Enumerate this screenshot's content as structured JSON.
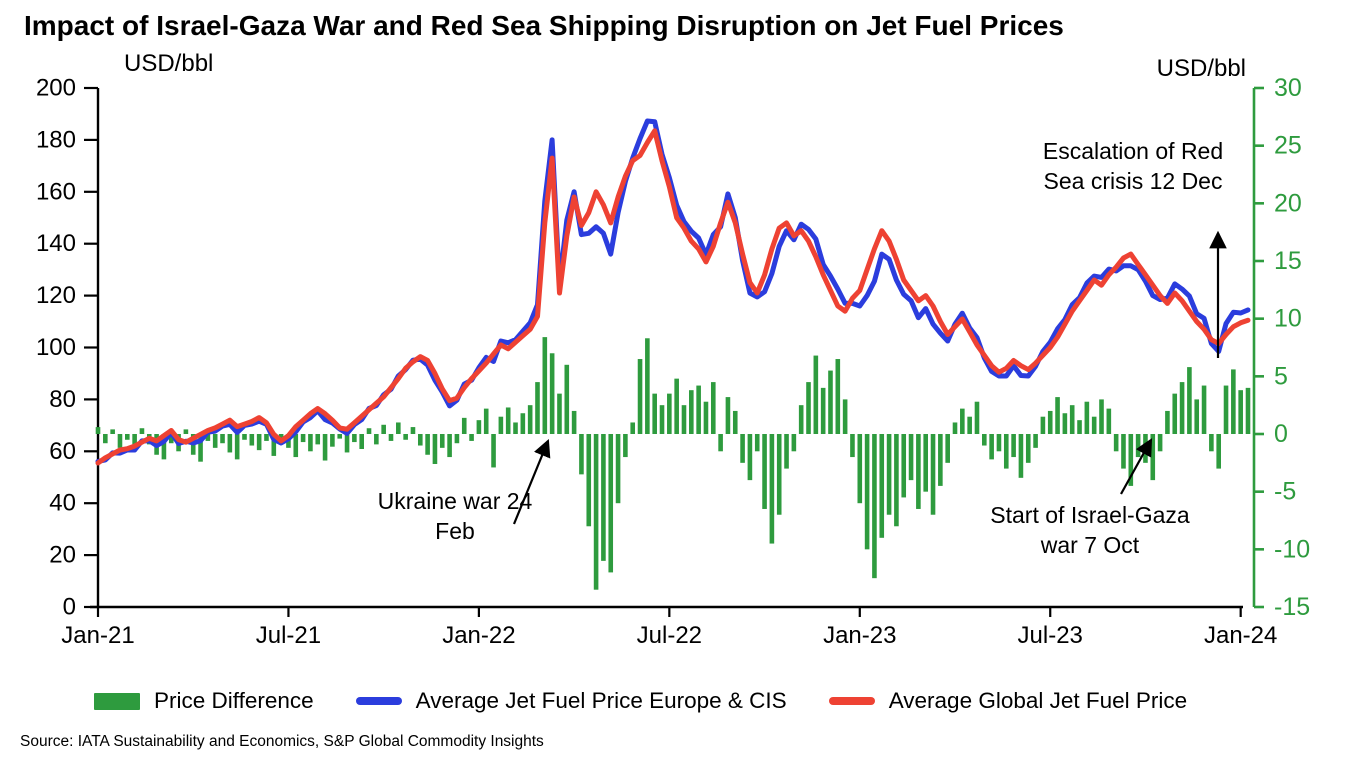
{
  "title": "Impact of Israel-Gaza War and Red Sea Shipping Disruption on Jet Fuel Prices",
  "source": "Source: IATA Sustainability and Economics, S&P Global Commodity Insights",
  "colors": {
    "green": "#2e9b3e",
    "blue": "#2b3ddd",
    "red": "#ee4233",
    "black": "#000000"
  },
  "annotations": {
    "ukraine": {
      "text": "Ukraine war 24 Feb",
      "line1": "Ukraine war 24",
      "line2": "Feb"
    },
    "israel": {
      "text": "Start of Israel-Gaza war 7 Oct",
      "line1": "Start of Israel-Gaza",
      "line2": "war 7 Oct"
    },
    "redsea": {
      "text": "Escalation of Red Sea crisis 12 Dec",
      "line1": "Escalation of Red",
      "line2": "Sea crisis 12 Dec"
    }
  },
  "legend": [
    {
      "label": "Price Difference",
      "type": "bar",
      "color": "#2e9b3e"
    },
    {
      "label": "Average Jet Fuel Price Europe & CIS",
      "type": "line",
      "color": "#2b3ddd"
    },
    {
      "label": "Average Global Jet Fuel Price",
      "type": "line",
      "color": "#ee4233"
    }
  ],
  "chart_data": {
    "type": "combo",
    "title": "Impact of Israel-Gaza War and Red Sea Shipping Disruption on Jet Fuel Prices",
    "x_start": "2021-01",
    "x_interval": "weekly",
    "x_tick_labels": [
      "Jan-21",
      "Jul-21",
      "Jan-22",
      "Jul-22",
      "Jan-23",
      "Jul-23",
      "Jan-24"
    ],
    "x_tick_indices": [
      0,
      26,
      52,
      78,
      104,
      130,
      156
    ],
    "left_axis": {
      "label": "USD/bbl",
      "min": 0,
      "max": 200,
      "ticks": [
        200,
        180,
        160,
        140,
        120,
        100,
        80,
        60,
        40,
        20,
        0
      ]
    },
    "right_axis": {
      "label": "USD/bbl",
      "min": -15,
      "max": 30,
      "ticks": [
        30,
        25,
        20,
        15,
        10,
        5,
        0,
        -5,
        -10,
        -15
      ]
    },
    "grid": false,
    "legend_position": "bottom",
    "series": [
      {
        "name": "Price Difference",
        "type": "bar",
        "axis": "right",
        "color": "#2e9b3e",
        "values": [
          0.6,
          -0.8,
          0.4,
          -1.2,
          -0.5,
          -1.5,
          0.5,
          -0.9,
          -1.8,
          -2.2,
          -0.8,
          -1.5,
          0.4,
          -1.8,
          -2.4,
          -0.6,
          -1.2,
          -0.8,
          -1.6,
          -2.2,
          -0.5,
          -1,
          -1.4,
          -0.6,
          -1.9,
          -0.8,
          -1.2,
          -2,
          -0.7,
          -1.5,
          -0.9,
          -2.3,
          -1.1,
          -0.4,
          -1.6,
          -0.7,
          -1.3,
          0.5,
          -0.9,
          0.8,
          -0.6,
          1,
          -0.5,
          0.6,
          -1,
          -1.8,
          -2.6,
          -1.2,
          -2,
          -0.8,
          1.4,
          -0.6,
          1.2,
          2.2,
          -2.9,
          1.5,
          2.3,
          1,
          1.8,
          2.5,
          4.5,
          8.4,
          7,
          3.5,
          6,
          2,
          -3.5,
          -8,
          -13.5,
          -11,
          -12,
          -6,
          -2,
          1,
          6.5,
          8.3,
          3.5,
          2.5,
          3.5,
          4.8,
          2.5,
          3.8,
          4.2,
          2.8,
          4.5,
          -1.5,
          3.2,
          2,
          -2.5,
          -4,
          -1.5,
          -6.5,
          -9.5,
          -7,
          -3,
          -1.5,
          2.5,
          4.5,
          6.8,
          4,
          5.5,
          6.5,
          3,
          -2,
          -6,
          -10,
          -12.5,
          -9,
          -7,
          -8,
          -5.5,
          -4,
          -6.5,
          -5,
          -7,
          -4.5,
          -2.5,
          1,
          2.2,
          1.5,
          2.8,
          -1,
          -2.2,
          -1.5,
          -3,
          -2,
          -3.8,
          -2.5,
          -1.2,
          1.5,
          2,
          3.2,
          1.8,
          2.5,
          1.2,
          2.8,
          1.5,
          3,
          2.2,
          -1.5,
          -3,
          -4.5,
          -2,
          -2.5,
          -4,
          -1.5,
          2,
          3.5,
          4.5,
          5.8,
          3,
          4.2,
          -1.5,
          -3,
          4.2,
          5.6,
          3.8,
          4
        ]
      },
      {
        "name": "Average Jet Fuel Price Europe & CIS",
        "type": "line",
        "axis": "left",
        "color": "#2b3ddd",
        "values": [
          56.1,
          56.7,
          59.4,
          59.3,
          60.5,
          60.5,
          64,
          64.1,
          62.2,
          63.8,
          67.2,
          63,
          63.9,
          63.2,
          64.1,
          67.4,
          67.8,
          69.7,
          70.4,
          67.3,
          70,
          70.5,
          71.6,
          70.4,
          64.6,
          63.2,
          64.8,
          67.5,
          71.3,
          73,
          75.6,
          72.2,
          70.9,
          68.6,
          66.9,
          70.3,
          72.2,
          76.5,
          77.6,
          81.8,
          83.9,
          89,
          91.5,
          95.1,
          95.5,
          93.2,
          87.4,
          82.8,
          77.5,
          79.7,
          85.9,
          87.4,
          92.2,
          96.2,
          94.6,
          102.5,
          101.8,
          103,
          106.3,
          109.5,
          116.5,
          156.4,
          180,
          124.5,
          149,
          160,
          143.5,
          144,
          146.5,
          144,
          136,
          152,
          164,
          173,
          180.5,
          187.3,
          187,
          174.5,
          165.5,
          154.8,
          148.5,
          144.8,
          142.2,
          135.8,
          143.5,
          146.5,
          159.2,
          150,
          133.5,
          121,
          119.5,
          121.5,
          128.5,
          139,
          145,
          141.5,
          147.5,
          145.5,
          141.8,
          132,
          127.5,
          122.5,
          117,
          117,
          116,
          120,
          125.5,
          136,
          134,
          126,
          120.5,
          118,
          111.5,
          115,
          109,
          105.5,
          102.5,
          109,
          113.2,
          107.5,
          103.8,
          96,
          90.8,
          89,
          89,
          93,
          89.2,
          89,
          92.8,
          98.5,
          102,
          107.2,
          110.8,
          116.5,
          119.2,
          124.8,
          127.5,
          127,
          130.2,
          129.5,
          131.5,
          131.5,
          130,
          125.5,
          120,
          118.5,
          119,
          124.5,
          122.5,
          119.8,
          113,
          111.2,
          101.5,
          98.5,
          109.2,
          113.6,
          113.3,
          114.5
        ]
      },
      {
        "name": "Average Global Jet Fuel Price",
        "type": "line",
        "axis": "left",
        "color": "#ee4233",
        "values": [
          55.5,
          57.5,
          59,
          60.5,
          61,
          62,
          63.5,
          65,
          64,
          66,
          68,
          64.5,
          63.5,
          65,
          66.5,
          68,
          69,
          70.5,
          72,
          69.5,
          70.5,
          71.5,
          73,
          71,
          66.5,
          64,
          66,
          69.5,
          72,
          74.5,
          76.5,
          74.5,
          72,
          69,
          68.5,
          71,
          73.5,
          76,
          78.5,
          81,
          84.5,
          88,
          92,
          94.5,
          96.5,
          95,
          90,
          84,
          79.5,
          80.5,
          84.5,
          88,
          91,
          94,
          97.5,
          101,
          99.5,
          102,
          104.5,
          107,
          112,
          148,
          173,
          121,
          143,
          158,
          147,
          152,
          160,
          155,
          148,
          158,
          166,
          172,
          174,
          179,
          183.5,
          172,
          162,
          150,
          146,
          141,
          138,
          133,
          139,
          148,
          156,
          148,
          136,
          125,
          121,
          128,
          138,
          146,
          148,
          143,
          145,
          141,
          135,
          128,
          122,
          116,
          114,
          119,
          122,
          130,
          138,
          145,
          141,
          134,
          126,
          122,
          118,
          120,
          116,
          110,
          105,
          108,
          111,
          106,
          101,
          97,
          93,
          90.5,
          92,
          95,
          93,
          91.5,
          94,
          97,
          100,
          104,
          109,
          114,
          118,
          122,
          126,
          124,
          128,
          131,
          134.5,
          136,
          132,
          128,
          124,
          120,
          117,
          121,
          118,
          114,
          110,
          107,
          103,
          101.5,
          105,
          108,
          109.5,
          110.5
        ]
      }
    ]
  }
}
